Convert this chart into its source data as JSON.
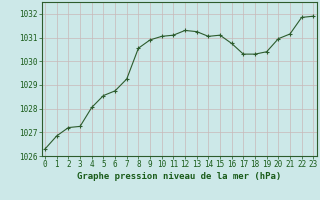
{
  "x": [
    0,
    1,
    2,
    3,
    4,
    5,
    6,
    7,
    8,
    9,
    10,
    11,
    12,
    13,
    14,
    15,
    16,
    17,
    18,
    19,
    20,
    21,
    22,
    23
  ],
  "y": [
    1026.3,
    1026.85,
    1027.2,
    1027.25,
    1028.05,
    1028.55,
    1028.75,
    1029.25,
    1030.55,
    1030.9,
    1031.05,
    1031.1,
    1031.3,
    1031.25,
    1031.05,
    1031.1,
    1030.75,
    1030.3,
    1030.3,
    1030.4,
    1030.95,
    1031.15,
    1031.85,
    1031.9
  ],
  "line_color": "#2d5c2d",
  "marker": "P",
  "marker_size": 2.5,
  "bg_color": "#cce8e8",
  "grid_color": "#c8b8b8",
  "xlabel": "Graphe pression niveau de la mer (hPa)",
  "xlabel_color": "#1a5c1a",
  "xlabel_fontsize": 6.5,
  "tick_color": "#1a5c1a",
  "tick_fontsize": 5.5,
  "ylim": [
    1026,
    1032.5
  ],
  "yticks": [
    1026,
    1027,
    1028,
    1029,
    1030,
    1031,
    1032
  ],
  "xlim": [
    -0.3,
    23.3
  ],
  "xticks": [
    0,
    1,
    2,
    3,
    4,
    5,
    6,
    7,
    8,
    9,
    10,
    11,
    12,
    13,
    14,
    15,
    16,
    17,
    18,
    19,
    20,
    21,
    22,
    23
  ]
}
